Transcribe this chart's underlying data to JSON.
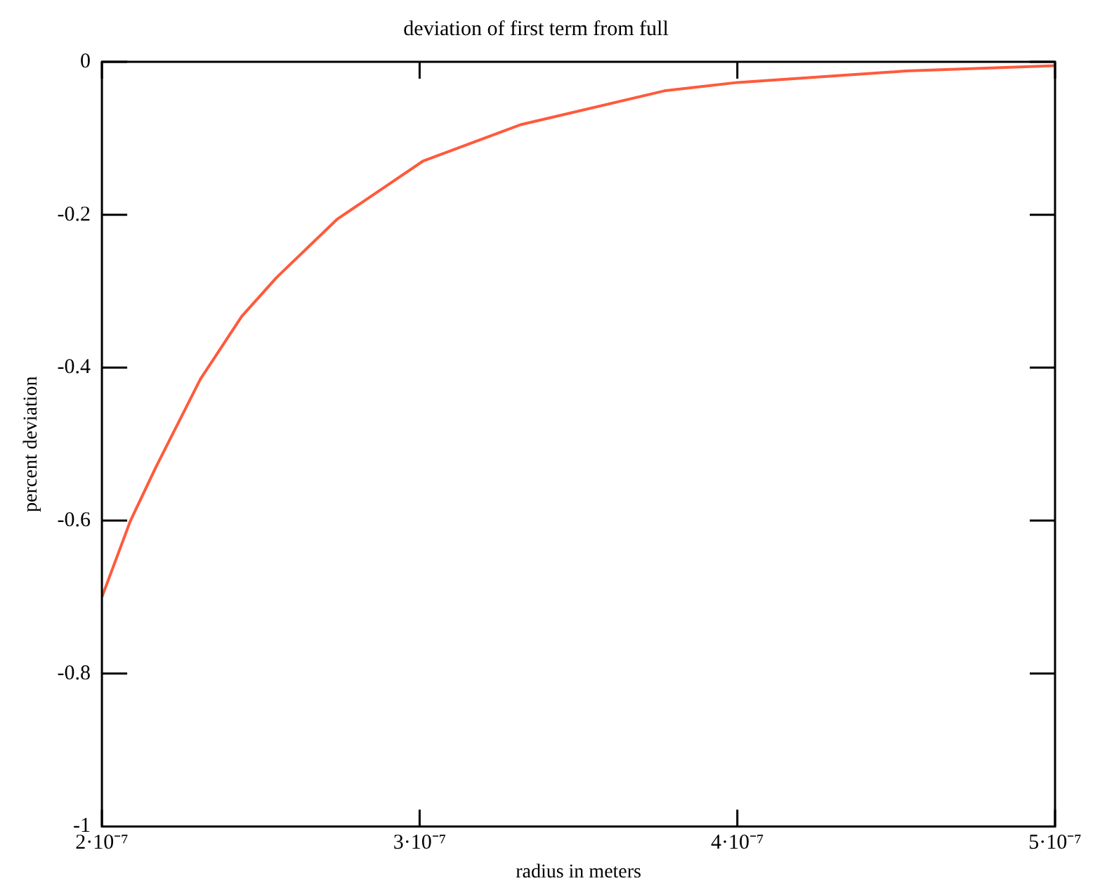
{
  "chart_data": {
    "type": "line",
    "title": "deviation of first term from full",
    "xlabel": "radius in meters",
    "ylabel": "percent deviation",
    "x": [
      2e-07,
      2.09e-07,
      2.17e-07,
      2.31e-07,
      2.44e-07,
      2.55e-07,
      2.74e-07,
      3.01e-07,
      3.32e-07,
      3.77e-07,
      4e-07,
      4.53e-07,
      5e-07
    ],
    "series": [
      {
        "color": "#ff5a3c",
        "values": [
          -0.7,
          -0.6,
          -0.53,
          -0.415,
          -0.333,
          -0.282,
          -0.206,
          -0.13,
          -0.082,
          -0.038,
          -0.027,
          -0.012,
          -0.005
        ]
      }
    ],
    "xlim": [
      2e-07,
      5e-07
    ],
    "xticks": [
      {
        "value": 2e-07,
        "label": "2·10⁻⁷"
      },
      {
        "value": 3e-07,
        "label": "3·10⁻⁷"
      },
      {
        "value": 4e-07,
        "label": "4·10⁻⁷"
      },
      {
        "value": 5e-07,
        "label": "5·10⁻⁷"
      }
    ],
    "ylim": [
      -1,
      0
    ],
    "yticks": [
      0,
      -0.2,
      -0.4,
      -0.6,
      -0.8,
      -1
    ],
    "grid": false,
    "legend": false,
    "marker": "none",
    "line_style": "solid"
  }
}
